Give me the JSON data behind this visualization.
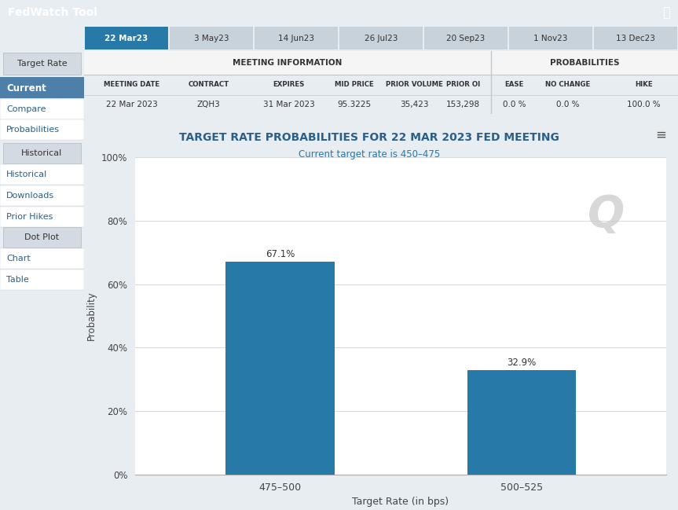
{
  "title": "TARGET RATE PROBABILITIES FOR 22 MAR 2023 FED MEETING",
  "subtitle": "Current target rate is 450–475",
  "bar_categories": [
    "475–500",
    "500–525"
  ],
  "bar_values": [
    67.1,
    32.9
  ],
  "bar_color": "#2779a7",
  "ylabel": "Probability",
  "xlabel": "Target Rate (in bps)",
  "ytick_labels": [
    "0%",
    "20%",
    "40%",
    "60%",
    "80%",
    "100%"
  ],
  "ytick_values": [
    0,
    20,
    40,
    60,
    80,
    100
  ],
  "ylim": [
    0,
    100
  ],
  "title_color": "#2b5f8a",
  "subtitle_color": "#2779a7",
  "top_bar_bg": "#4d7fa8",
  "top_bar_text": "FedWatch Tool",
  "tab_active_bg": "#2779a7",
  "tab_inactive_bg": "#c8d2db",
  "fig_bg": "#e8edf2",
  "sidebar_bg": "#e8edf2",
  "sidebar_active_bg": "#4d7fa8",
  "sidebar_btn_bg": "#d3dae1",
  "chart_bg": "#ffffff",
  "grid_color": "#d8d8d8",
  "tabs": [
    "22 Mar23",
    "3 May23",
    "14 Jun23",
    "26 Jul23",
    "20 Sep23",
    "1 Nov23",
    "13 Dec23"
  ],
  "meeting_date": "22 Mar 2023",
  "contract": "ZQH3",
  "expires": "31 Mar 2023",
  "mid_price": "95.3225",
  "prior_volume": "35,423",
  "prior_oi": "153,298",
  "ease": "0.0 %",
  "no_change": "0.0 %",
  "hike": "100.0 %"
}
